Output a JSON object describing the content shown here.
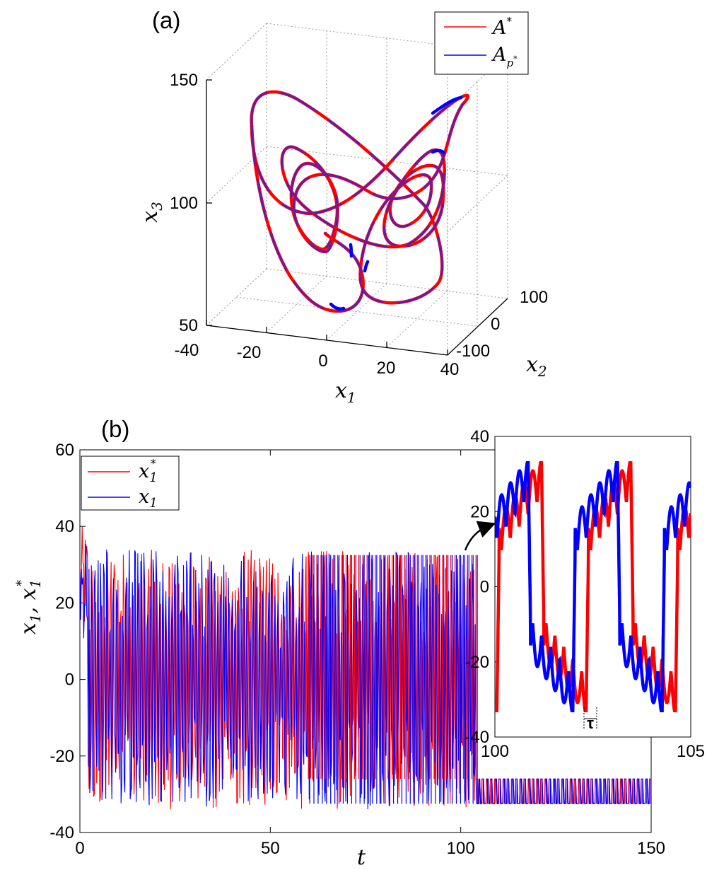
{
  "panel_a": {
    "label": "(a)",
    "chart_data": {
      "type": "line",
      "title": "",
      "xlabel": "x1",
      "ylabel": "x3",
      "zlabel": "x2",
      "x1_ticks": [
        "-40",
        "-20",
        "0",
        "20",
        "40"
      ],
      "x2_ticks": [
        "-100",
        "0",
        "100"
      ],
      "x3_ticks": [
        "50",
        "100",
        "150"
      ],
      "xlim": [
        -40,
        40
      ],
      "ylim": [
        -100,
        100
      ],
      "zlim": [
        50,
        150
      ],
      "grid": true,
      "legend_position": "top-right",
      "series": [
        {
          "name": "A*",
          "color": "#ff0000"
        },
        {
          "name": "Ap*",
          "color": "#0000ff"
        }
      ]
    }
  },
  "panel_b": {
    "label": "(b)",
    "chart_data": {
      "type": "line",
      "title": "",
      "xlabel": "t",
      "ylabel": "x1, x1*",
      "x_ticks": [
        "0",
        "50",
        "100",
        "150"
      ],
      "y_ticks": [
        "-40",
        "-20",
        "0",
        "20",
        "40",
        "60"
      ],
      "xlim": [
        0,
        150
      ],
      "ylim": [
        -40,
        60
      ],
      "legend_position": "top-left",
      "series": [
        {
          "name": "x1*",
          "color": "#ff0000"
        },
        {
          "name": "x1",
          "color": "#0000ff"
        }
      ],
      "sync_time": 104,
      "max_value": 32.5,
      "min_value": -32.5
    }
  },
  "inset": {
    "chart_data": {
      "type": "line",
      "xlim": [
        100,
        105
      ],
      "ylim": [
        -40,
        40
      ],
      "x_ticks": [
        "100",
        "105"
      ],
      "y_ticks": [
        "-40",
        "-20",
        "0",
        "20",
        "40"
      ],
      "annotation": "τ",
      "lag": 0.34,
      "series": [
        {
          "name": "x1*",
          "color": "#ff0000",
          "minima_t": [
            100.05,
            102.43,
            104.72
          ],
          "maxima_t": [
            101.03,
            103.62
          ]
        },
        {
          "name": "x1",
          "color": "#0000ff",
          "minima_t": [
            102.09,
            104.38
          ],
          "maxima_t": [
            100.7,
            103.28
          ]
        }
      ]
    }
  }
}
